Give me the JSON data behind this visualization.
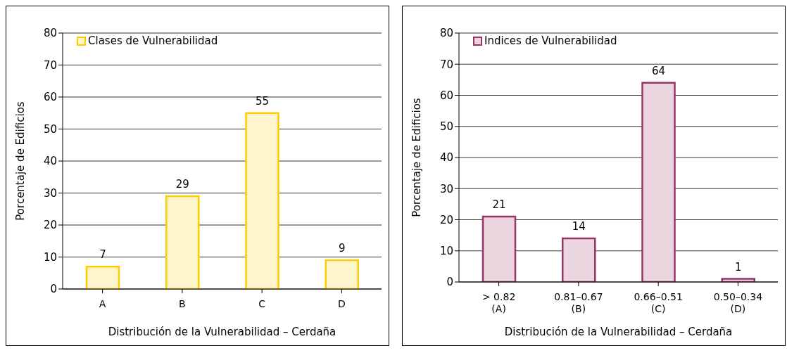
{
  "chart_data": [
    {
      "type": "bar",
      "categories": [
        "A",
        "B",
        "C",
        "D"
      ],
      "series": [
        {
          "name": "Clases de Vulnerabilidad",
          "color": "#ffcc00",
          "values": [
            7,
            29,
            55,
            9
          ]
        }
      ],
      "xlabel": "Distribución de la Vulnerabilidad – Cerdaña",
      "ylabel": "Porcentaje de Edificios",
      "ylim": [
        0,
        80
      ],
      "yticks": [
        0,
        10,
        20,
        30,
        40,
        50,
        60,
        70,
        80
      ],
      "grid": "y",
      "legend": "top left",
      "data_labels": true
    },
    {
      "type": "bar",
      "categories": [
        "> 0.82\n(A)",
        "0.81–0.67\n(B)",
        "0.66–0.51\n(C)",
        "0.50–0.34\n(D)"
      ],
      "series": [
        {
          "name": "Indices de Vulnerabilidad",
          "color": "#993366",
          "values": [
            21,
            14,
            64,
            1
          ]
        }
      ],
      "xlabel": "Distribución de la Vulnerabilidad – Cerdaña",
      "ylabel": "Porcentaje de Edificios",
      "ylim": [
        0,
        80
      ],
      "yticks": [
        0,
        10,
        20,
        30,
        40,
        50,
        60,
        70,
        80
      ],
      "grid": "y",
      "legend": "top left",
      "data_labels": true
    }
  ]
}
